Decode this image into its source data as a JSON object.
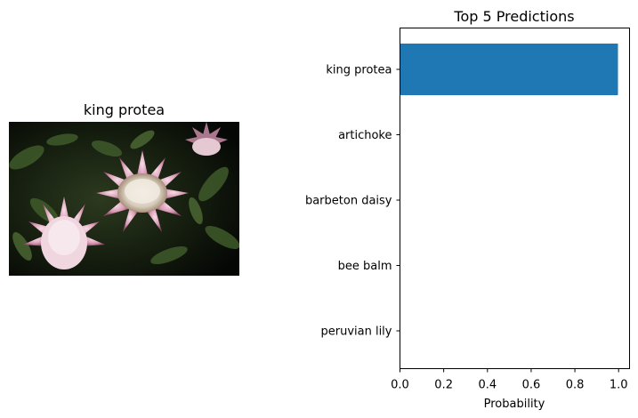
{
  "image_panel": {
    "title": "king protea",
    "photo_icon": "king-protea-flower-photo"
  },
  "chart_data": {
    "type": "bar",
    "orientation": "horizontal",
    "title": "Top 5 Predictions",
    "xlabel": "Probability",
    "ylabel": "",
    "categories": [
      "king protea",
      "artichoke",
      "barbeton daisy",
      "bee balm",
      "peruvian lily"
    ],
    "values": [
      0.997,
      0.0,
      0.0,
      0.0,
      0.0
    ],
    "xlim": [
      0,
      1.05
    ],
    "xticks": [
      0.0,
      0.2,
      0.4,
      0.6,
      0.8,
      1.0
    ],
    "xtick_labels": [
      "0.0",
      "0.2",
      "0.4",
      "0.6",
      "0.8",
      "1.0"
    ],
    "bar_color": "#1f77b4",
    "grid": false,
    "legend": "none"
  }
}
